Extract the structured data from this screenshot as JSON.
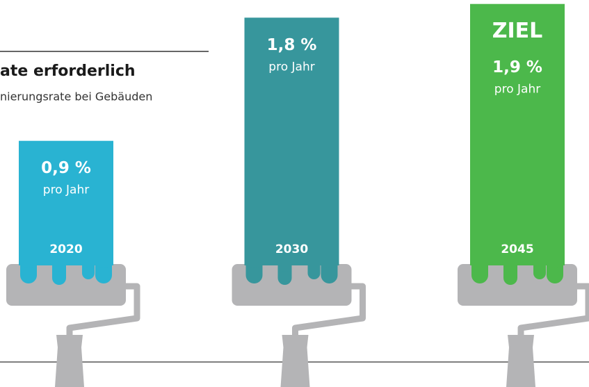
{
  "chart_data": {
    "type": "bar",
    "title": "ate erforderlich",
    "subtitle": "nierungsrate bei Gebäuden",
    "categories": [
      "2020",
      "2030",
      "2045"
    ],
    "values": [
      0.9,
      1.8,
      1.9
    ],
    "value_labels": [
      "0,9 %",
      "1,8 %",
      "1,9 %"
    ],
    "unit": "pro Jahr",
    "annotations": [
      null,
      null,
      "ZIEL"
    ],
    "colors": [
      "#29b3d2",
      "#37969c",
      "#4cb84b"
    ]
  }
}
